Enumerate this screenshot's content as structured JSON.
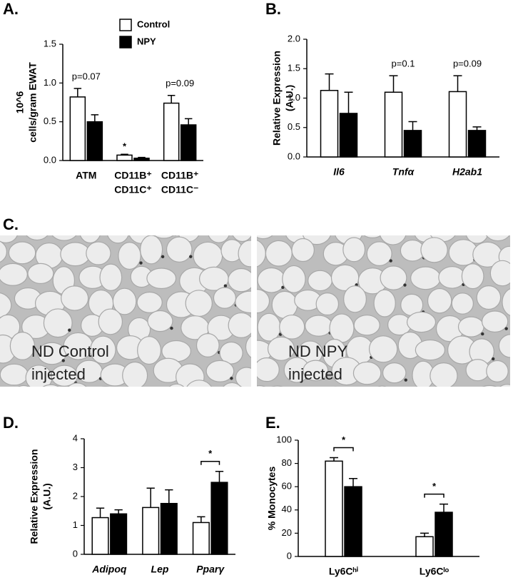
{
  "chart_data": [
    {
      "type": "bar",
      "label": "A.",
      "ylabel": [
        "10^6",
        "cells/gram EWAT"
      ],
      "categories": [
        [
          "ATM"
        ],
        [
          "CD11B⁺",
          "CD11C⁺"
        ],
        [
          "CD11B⁺",
          "CD11C⁻"
        ]
      ],
      "series": [
        {
          "name": "Control",
          "color": "#ffffff",
          "values": [
            0.82,
            0.07,
            0.74
          ],
          "errors": [
            0.11,
            0.01,
            0.1
          ]
        },
        {
          "name": "NPY",
          "color": "#000000",
          "values": [
            0.5,
            0.03,
            0.46
          ],
          "errors": [
            0.09,
            0.01,
            0.08
          ]
        }
      ],
      "annotations": [
        "p=0.07",
        "*",
        "p=0.09"
      ],
      "ylim": [
        0,
        1.5
      ],
      "yticks": [
        {
          "value": 0,
          "label": "0.0"
        },
        0.5,
        {
          "value": 1,
          "label": "1.0"
        },
        1.5
      ],
      "legend": true
    },
    {
      "type": "bar",
      "label": "B.",
      "ylabel": [
        "Relative Expression",
        "(A.U.)"
      ],
      "categories": [
        [
          "Il6"
        ],
        [
          "Tnfα"
        ],
        [
          "H2ab1"
        ]
      ],
      "series": [
        {
          "color": "#ffffff",
          "values": [
            1.13,
            1.1,
            1.11
          ],
          "errors": [
            0.28,
            0.28,
            0.27
          ]
        },
        {
          "color": "#000000",
          "values": [
            0.74,
            0.45,
            0.45
          ],
          "errors": [
            0.36,
            0.15,
            0.06
          ]
        }
      ],
      "annotations": [
        null,
        "p=0.1",
        "p=0.09"
      ],
      "ylim": [
        0,
        2
      ],
      "yticks": [
        {
          "value": 0,
          "label": "0.0"
        },
        0.5,
        {
          "value": 1,
          "label": "1.0"
        },
        1.5,
        {
          "value": 2,
          "label": "2.0"
        }
      ]
    },
    {
      "type": "bar",
      "label": "D.",
      "ylabel": [
        "Relative Expression",
        "(A.U.)"
      ],
      "categories": [
        [
          "Adipoq"
        ],
        [
          "Lep"
        ],
        [
          "Pparγ"
        ]
      ],
      "series": [
        {
          "color": "#ffffff",
          "values": [
            1.27,
            1.62,
            1.1
          ],
          "errors": [
            0.33,
            0.67,
            0.2
          ]
        },
        {
          "color": "#000000",
          "values": [
            1.4,
            1.76,
            2.49
          ],
          "errors": [
            0.14,
            0.47,
            0.38
          ]
        }
      ],
      "annotations": [
        null,
        null,
        "*"
      ],
      "bracket": true,
      "ylim": [
        0,
        4
      ],
      "yticks": [
        0,
        1,
        2,
        3,
        4
      ]
    },
    {
      "type": "bar",
      "label": "E.",
      "ylabel": [
        "% Monocytes"
      ],
      "categories": [
        [
          "Ly6Cʰⁱ"
        ],
        [
          "Ly6Cˡᵒ"
        ]
      ],
      "series": [
        {
          "color": "#ffffff",
          "values": [
            82,
            17
          ],
          "errors": [
            3,
            3
          ]
        },
        {
          "color": "#000000",
          "values": [
            60,
            38
          ],
          "errors": [
            7,
            7
          ]
        }
      ],
      "annotations": [
        "*",
        "*"
      ],
      "bracket": true,
      "ylim": [
        0,
        100
      ],
      "yticks": [
        0,
        20,
        40,
        60,
        80,
        100
      ]
    }
  ],
  "histology": {
    "label": "C.",
    "images": [
      {
        "caption": [
          "ND Control",
          "injected"
        ]
      },
      {
        "caption": [
          "ND NPY",
          "injected"
        ]
      }
    ]
  }
}
